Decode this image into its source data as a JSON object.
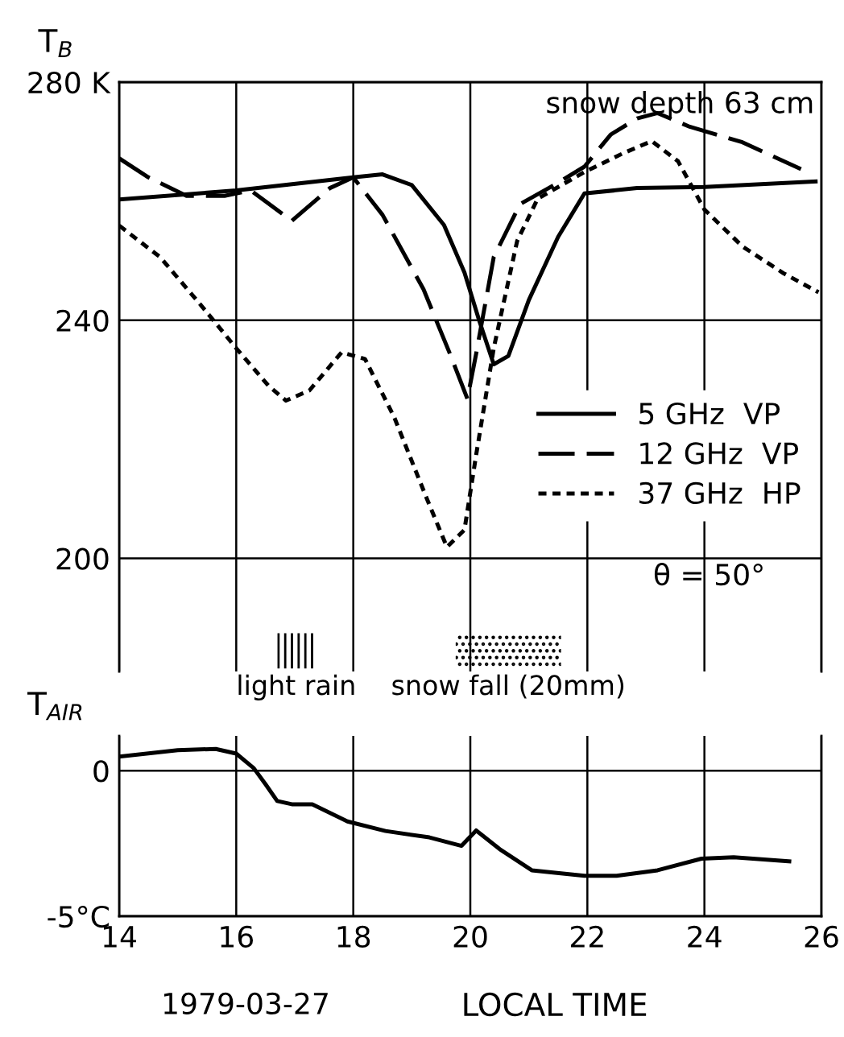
{
  "chart_data": [
    {
      "type": "line",
      "ylabel": "T$_{B}$",
      "xlim": [
        14,
        26
      ],
      "ylim": [
        181,
        280
      ],
      "xticks": [
        14,
        16,
        18,
        20,
        22,
        24,
        26
      ],
      "yticks": [
        200,
        240,
        {
          "value": 280,
          "label": "280 K"
        }
      ],
      "tick_labels": "y",
      "grid": true,
      "legend": "lower right",
      "annotations": [
        "snow depth 63 cm",
        "θ = 50°"
      ],
      "bands": [
        {
          "axis": "x",
          "from": 16.7,
          "to": 17.35,
          "label": "light rain"
        },
        {
          "axis": "x",
          "from": 19.75,
          "to": 21.55,
          "label": "snow fall (20mm)"
        }
      ],
      "series": [
        {
          "name": "5 GHz  VP",
          "color": "#000000",
          "line_style": "solid",
          "x": [
            14,
            16,
            18,
            18.5,
            19.0,
            19.55,
            19.9,
            20.15,
            20.4,
            20.65,
            21.0,
            21.5,
            21.95,
            22.85,
            24,
            25.9
          ],
          "values": [
            260.3,
            261.8,
            264,
            264.5,
            262.7,
            256,
            248,
            240,
            232.6,
            234,
            243.4,
            254,
            261.3,
            262.2,
            262.4,
            263.3
          ]
        },
        {
          "name": "12 GHz  VP",
          "color": "#000000",
          "line_style": "dashed",
          "x": [
            14,
            14.5,
            15.15,
            15.8,
            16.25,
            16.95,
            17.6,
            18.0,
            18.5,
            19.2,
            19.65,
            19.95,
            20.1,
            20.4,
            20.85,
            21.5,
            21.95,
            22.4,
            22.85,
            23.2,
            23.75,
            24.65,
            25.65
          ],
          "values": [
            267.2,
            264,
            260.9,
            260.9,
            261.8,
            256.7,
            262.2,
            264,
            257.7,
            245.2,
            234.4,
            226.8,
            234.4,
            250.6,
            259.5,
            263.1,
            265.8,
            271.2,
            273.9,
            274.8,
            272.5,
            269.9,
            265.4
          ]
        },
        {
          "name": "37 GHz  HP",
          "color": "#000000",
          "line_style": "dotted",
          "x": [
            14,
            14.7,
            15.4,
            16,
            16.55,
            16.85,
            17.25,
            17.8,
            18.2,
            18.7,
            19.25,
            19.6,
            19.9,
            20.1,
            20.4,
            20.8,
            21.15,
            21.95,
            22.6,
            23.1,
            23.55,
            24,
            24.65,
            25.35,
            25.95
          ],
          "values": [
            255.9,
            250.6,
            242.5,
            235.3,
            229,
            226.5,
            228.2,
            234.6,
            233.5,
            223.7,
            210.2,
            201.9,
            204.8,
            217.4,
            235.3,
            253.3,
            260.4,
            264.9,
            268,
            270.1,
            266.7,
            258.6,
            252.4,
            247.9,
            244.7
          ]
        }
      ]
    },
    {
      "type": "line",
      "ylabel": "T$_{AIR}$",
      "xlabel": "LOCAL TIME",
      "xlim": [
        14,
        26
      ],
      "ylim": [
        -5,
        1.2
      ],
      "xticks": [
        14,
        16,
        18,
        20,
        22,
        24,
        26
      ],
      "yticks": [
        {
          "value": -5,
          "label": "-5°C"
        },
        0
      ],
      "grid": true,
      "annotations": [
        "1979-03-27"
      ],
      "series": [
        {
          "color": "#000000",
          "line_style": "solid",
          "x": [
            14,
            15,
            15.65,
            16,
            16.3,
            16.5,
            16.7,
            16.95,
            17.3,
            17.9,
            18.55,
            19.3,
            19.85,
            20.1,
            20.5,
            21.05,
            21.95,
            22.5,
            23.2,
            23.95,
            24.5,
            25.45
          ],
          "values": [
            0.49,
            0.71,
            0.75,
            0.59,
            0.09,
            -0.46,
            -1.04,
            -1.15,
            -1.15,
            -1.74,
            -2.07,
            -2.29,
            -2.58,
            -2.05,
            -2.69,
            -3.42,
            -3.61,
            -3.61,
            -3.42,
            -3.02,
            -2.97,
            -3.11
          ]
        }
      ]
    }
  ]
}
